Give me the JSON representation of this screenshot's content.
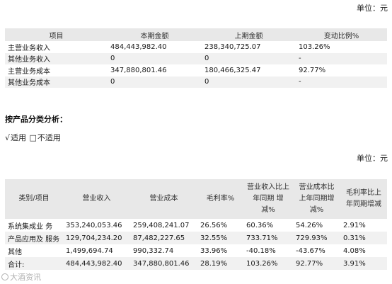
{
  "unit_label": "单位：元",
  "revenue_table": {
    "headers": [
      "项目",
      "本期金额",
      "上期金额",
      "变动比例%"
    ],
    "rows": [
      [
        "主营业务收入",
        "484,443,982.40",
        "238,340,725.07",
        "103.26%"
      ],
      [
        "其他业务收入",
        "0",
        "0",
        "-"
      ],
      [
        "主营业务成本",
        "347,880,801.46",
        "180,466,325.47",
        "92.77%"
      ],
      [
        "其他业务成本",
        "0",
        "0",
        "-"
      ]
    ]
  },
  "section_heading": "按产品分类分析：",
  "applicability": {
    "applicable_mark": "√",
    "applicable_label": "适用",
    "not_applicable_mark": "□",
    "not_applicable_label": "不适用"
  },
  "product_table": {
    "headers": [
      "类别/项目",
      "营业收入",
      "营业成本",
      "毛利率%",
      "营业收入比上年同期 增减%",
      "营业成本比上年同期增减%",
      "毛利率比上年同期增减"
    ],
    "rows": [
      [
        "系统集成业 务",
        "353,240,053.46",
        "259,408,241.07",
        "26.56%",
        "60.36%",
        "54.26%",
        "2.91%"
      ],
      [
        "产品应用及 服务",
        "129,704,234.20",
        "87,482,227.65",
        "32.55%",
        "733.71%",
        "729.93%",
        "0.31%"
      ],
      [
        "其他",
        "1,499,694.74",
        "990,332.74",
        "33.96%",
        "-40.18%",
        "-43.67%",
        "4.08%"
      ],
      [
        "合计:",
        "484,443,982.40",
        "347,880,801.46",
        "28.19%",
        "103.26%",
        "92.77%",
        "3.91%"
      ]
    ]
  },
  "watermark": "大酒资讯"
}
